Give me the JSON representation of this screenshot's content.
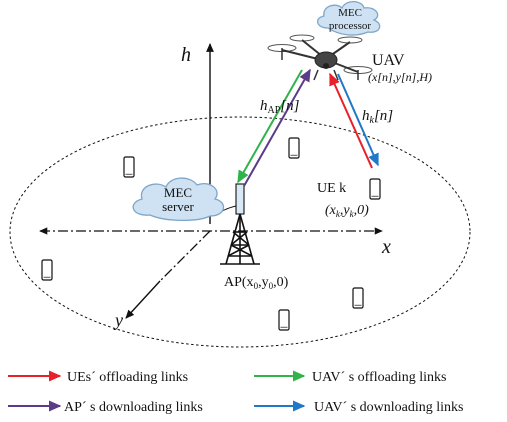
{
  "labels": {
    "h_axis": "h",
    "x_axis": "x",
    "y_axis": "y",
    "mec_processor_line1": "MEC",
    "mec_processor_line2": "processor",
    "uav": "UAV",
    "uav_coords": "(x[n],y[n],H)",
    "h_ap_main": "h",
    "h_ap_sub": "AP",
    "h_ap_arg": "[n]",
    "h_k_main": "h",
    "h_k_sub": "k",
    "h_k_arg": "[n]",
    "ue_k": "UE k",
    "ue_k_coords_a": "(x",
    "ue_k_coords_sub1": "k",
    "ue_k_coords_b": ",y",
    "ue_k_coords_sub2": "k",
    "ue_k_coords_c": ",0)",
    "mec_server_line1": "MEC",
    "mec_server_line2": "server",
    "ap_a": "AP(x",
    "ap_sub1": "0",
    "ap_b": ",y",
    "ap_sub2": "0",
    "ap_c": ",0)"
  },
  "legend": [
    {
      "label": "UEs´ offloading links",
      "color": "#e8202a"
    },
    {
      "label": "UAV´ s offloading links",
      "color": "#2fb34a"
    },
    {
      "label": "AP´ s downloading links",
      "color": "#5b3c88"
    },
    {
      "label": "UAV´ s downloading links",
      "color": "#1f78c8"
    }
  ],
  "colors": {
    "ue_offload": "#e8202a",
    "uav_offload": "#2fb34a",
    "ap_download": "#5b3c88",
    "uav_download": "#1f78c8",
    "cloud_fill": "#cfe2f3",
    "cloud_stroke": "#7fa6c8",
    "ap_device": "#d9e8f5"
  },
  "icons": [
    "uav-drone-icon",
    "cloud-icon",
    "ap-tower-icon",
    "smartphone-icon"
  ]
}
